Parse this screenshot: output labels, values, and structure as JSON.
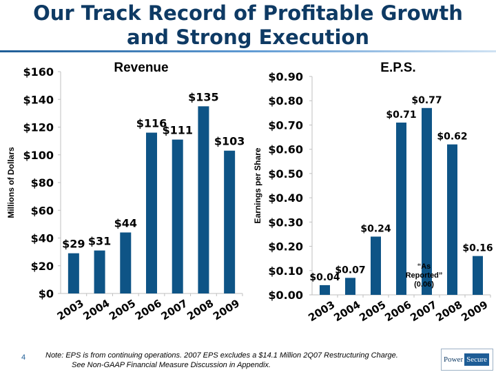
{
  "slide": {
    "title_line1": "Our Track Record of Profitable Growth",
    "title_line2": "and Strong Execution",
    "page_number": "4",
    "note_line1": "Note:    EPS is from continuing operations.  2007 EPS excludes a $14.1 Million 2Q07 Restructuring Charge.",
    "note_line2": "See Non-GAAP Financial Measure Discussion in Appendix.",
    "logo_part1": "Power",
    "logo_part2": "Secure"
  },
  "colors": {
    "bar": "#0e5486",
    "title": "#0e3a64",
    "axis": "#bfbfbf"
  },
  "chart_data": [
    {
      "type": "bar",
      "title": "Revenue",
      "ylabel": "Millions of Dollars",
      "categories": [
        "2003",
        "2004",
        "2005",
        "2006",
        "2007",
        "2008",
        "2009"
      ],
      "values": [
        29,
        31,
        44,
        116,
        111,
        135,
        103
      ],
      "data_labels": [
        "$29",
        "$31",
        "$44",
        "$116",
        "$111",
        "$135",
        "$103"
      ],
      "ylim": [
        0,
        160
      ],
      "yticks": [
        0,
        20,
        40,
        60,
        80,
        100,
        120,
        140,
        160
      ],
      "ytick_labels": [
        "$0",
        "$20",
        "$40",
        "$60",
        "$80",
        "$100",
        "$120",
        "$140",
        "$160"
      ],
      "grid": false
    },
    {
      "type": "bar",
      "title": "E.P.S.",
      "ylabel": "Earnings per Share",
      "categories": [
        "2003",
        "2004",
        "2005",
        "2006",
        "2007",
        "2008",
        "2009"
      ],
      "values": [
        0.04,
        0.07,
        0.24,
        0.71,
        0.77,
        0.62,
        0.16
      ],
      "data_labels": [
        "$0.04",
        "$0.07",
        "$0.24",
        "$0.71",
        "$0.77",
        "$0.62",
        "$0.16"
      ],
      "ylim": [
        0,
        0.9
      ],
      "yticks": [
        0,
        0.1,
        0.2,
        0.3,
        0.4,
        0.5,
        0.6,
        0.7,
        0.8,
        0.9
      ],
      "ytick_labels": [
        "$0.00",
        "$0.10",
        "$0.20",
        "$0.30",
        "$0.40",
        "$0.50",
        "$0.60",
        "$0.70",
        "$0.80",
        "$0.90"
      ],
      "annotation": {
        "lines": [
          "“As",
          "Reported”",
          "(0.06)"
        ],
        "category": "2007"
      },
      "grid": false
    }
  ]
}
